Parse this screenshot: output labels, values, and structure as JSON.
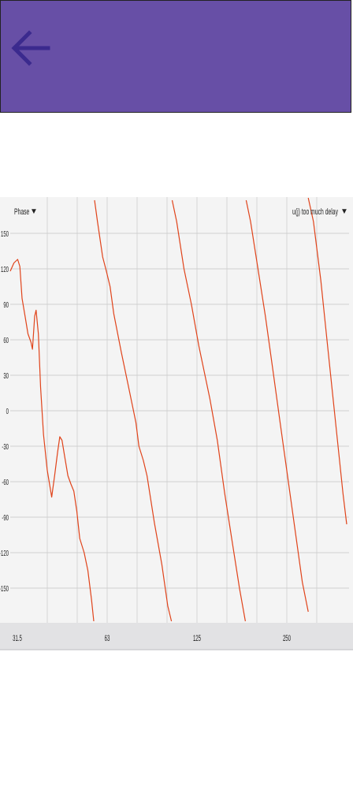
{
  "app_bar": {
    "back_icon": "arrow-left-icon",
    "background_color": "#674fa6",
    "icon_color": "#3b2a8e"
  },
  "chart_data": {
    "type": "line",
    "ylabel": "Phase",
    "ylabel_indicator": "▼",
    "warning": "u(j) too much delay",
    "warning_indicator": "▼",
    "y_ticks": [
      150,
      120,
      90,
      60,
      30,
      0,
      -30,
      -60,
      -90,
      -120,
      -150
    ],
    "ylim": [
      -180,
      180
    ],
    "x_tick_labels": [
      "31.5",
      "63",
      "125",
      "250"
    ],
    "grid": true,
    "line_color": "#e0431a",
    "series": [
      {
        "segments": [
          [
            [
              0.0,
              118
            ],
            [
              0.5,
              125
            ],
            [
              1.0,
              128
            ],
            [
              1.3,
              122
            ],
            [
              1.6,
              95
            ],
            [
              2.0,
              80
            ],
            [
              2.4,
              65
            ],
            [
              2.8,
              58
            ],
            [
              3.0,
              52
            ],
            [
              3.3,
              80
            ],
            [
              3.5,
              85
            ],
            [
              3.8,
              65
            ],
            [
              4.1,
              20
            ],
            [
              4.5,
              -20
            ],
            [
              5.0,
              -50
            ],
            [
              5.6,
              -73
            ],
            [
              6.0,
              -55
            ],
            [
              6.4,
              -35
            ],
            [
              6.7,
              -22
            ],
            [
              7.0,
              -25
            ],
            [
              7.4,
              -40
            ],
            [
              7.8,
              -55
            ],
            [
              8.2,
              -62
            ],
            [
              8.6,
              -68
            ],
            [
              9.0,
              -85
            ],
            [
              9.4,
              -108
            ],
            [
              10.0,
              -120
            ],
            [
              10.5,
              -135
            ],
            [
              11.0,
              -160
            ],
            [
              11.3,
              -178
            ]
          ],
          [
            [
              11.4,
              178
            ],
            [
              11.8,
              160
            ],
            [
              12.5,
              130
            ],
            [
              13.0,
              118
            ],
            [
              13.5,
              105
            ],
            [
              14.0,
              82
            ],
            [
              15.0,
              50
            ],
            [
              16.0,
              20
            ],
            [
              17.0,
              -10
            ],
            [
              17.4,
              -30
            ],
            [
              18.0,
              -42
            ],
            [
              18.5,
              -55
            ],
            [
              19.5,
              -95
            ],
            [
              20.5,
              -130
            ],
            [
              21.3,
              -165
            ],
            [
              21.8,
              -178
            ]
          ],
          [
            [
              21.9,
              178
            ],
            [
              22.5,
              160
            ],
            [
              23.5,
              120
            ],
            [
              24.5,
              90
            ],
            [
              25.5,
              55
            ],
            [
              26.0,
              40
            ],
            [
              27.0,
              10
            ],
            [
              28.0,
              -25
            ],
            [
              29.0,
              -70
            ],
            [
              30.0,
              -110
            ],
            [
              31.0,
              -150
            ],
            [
              31.8,
              -178
            ]
          ],
          [
            [
              31.9,
              178
            ],
            [
              32.5,
              160
            ],
            [
              33.5,
              120
            ],
            [
              34.5,
              80
            ],
            [
              35.5,
              35
            ],
            [
              36.5,
              -10
            ],
            [
              37.5,
              -55
            ],
            [
              38.5,
              -100
            ],
            [
              39.5,
              -145
            ],
            [
              40.3,
              -170
            ]
          ],
          [
            [
              40.3,
              180
            ],
            [
              41.0,
              160
            ],
            [
              42.0,
              110
            ],
            [
              43.0,
              50
            ],
            [
              44.0,
              -10
            ],
            [
              45.0,
              -70
            ],
            [
              45.5,
              -96
            ]
          ]
        ]
      }
    ]
  }
}
